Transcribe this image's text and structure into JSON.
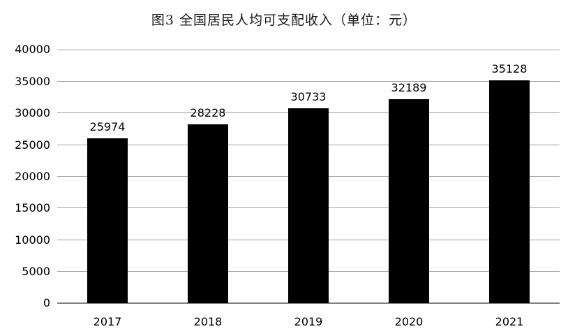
{
  "chart_data": {
    "type": "bar",
    "title": "图3 全国居民人均可支配收入（单位：元）",
    "categories": [
      "2017",
      "2018",
      "2019",
      "2020",
      "2021"
    ],
    "values": [
      25974,
      28228,
      30733,
      32189,
      35128
    ],
    "xlabel": "",
    "ylabel": "",
    "ylim": [
      0,
      40000
    ],
    "ytick_step": 5000,
    "ytick_labels": [
      "0",
      "5000",
      "10000",
      "15000",
      "20000",
      "25000",
      "30000",
      "35000",
      "40000"
    ],
    "grid": true,
    "legend": false,
    "value_labels_shown": true,
    "colors": {
      "bar": "#000000",
      "gridline": "#9d9d9d",
      "axis_line": "#808080",
      "background": "#ffffff",
      "text": "#000000"
    }
  }
}
